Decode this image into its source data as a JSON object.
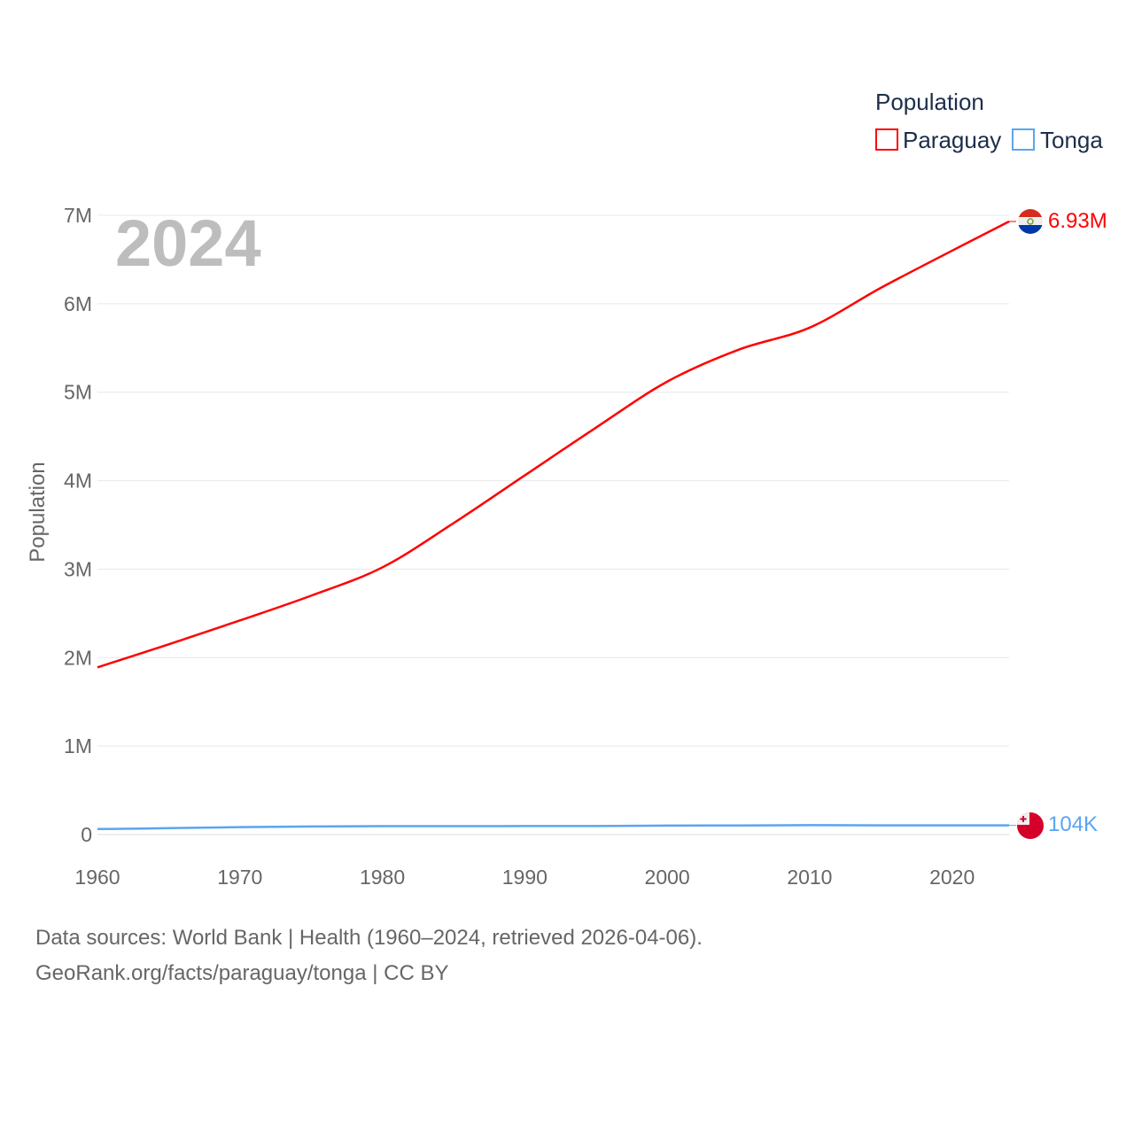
{
  "chart_data": {
    "type": "line",
    "title": "Population",
    "year_overlay": "2024",
    "xlabel": "",
    "ylabel": "Population",
    "xlim": [
      1960,
      2024
    ],
    "ylim": [
      0,
      7000000
    ],
    "x_ticks": [
      "1960",
      "1970",
      "1980",
      "1990",
      "2000",
      "2010",
      "2020"
    ],
    "x_tick_values": [
      1960,
      1970,
      1980,
      1990,
      2000,
      2010,
      2020
    ],
    "y_ticks": [
      "0",
      "1M",
      "2M",
      "3M",
      "4M",
      "5M",
      "6M",
      "7M"
    ],
    "y_tick_values": [
      0,
      1000000,
      2000000,
      3000000,
      4000000,
      5000000,
      6000000,
      7000000
    ],
    "grid": true,
    "legend_placement": "top-right",
    "x": [
      1960,
      1965,
      1970,
      1975,
      1980,
      1985,
      1990,
      1995,
      2000,
      2005,
      2010,
      2015,
      2020,
      2024
    ],
    "series": [
      {
        "name": "Paraguay",
        "color": "#ff0000",
        "end_label": "6.93M",
        "flag": "paraguay-flag",
        "values": [
          1890000,
          2150000,
          2420000,
          2700000,
          3020000,
          3520000,
          4060000,
          4600000,
          5120000,
          5480000,
          5730000,
          6180000,
          6600000,
          6930000
        ]
      },
      {
        "name": "Tonga",
        "color": "#5aa5f0",
        "end_label": "104K",
        "flag": "tonga-flag",
        "values": [
          62000,
          72000,
          84000,
          92000,
          95000,
          95000,
          96000,
          97000,
          101000,
          103000,
          106000,
          104000,
          104000,
          104000
        ]
      }
    ]
  },
  "footer": {
    "line1": "Data sources: World Bank | Health (1960–2024, retrieved 2026-04-06).",
    "line2": "GeoRank.org/facts/paraguay/tonga | CC BY"
  }
}
